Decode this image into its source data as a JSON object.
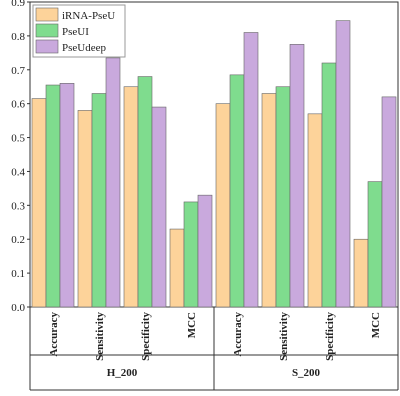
{
  "chart_data": {
    "type": "bar",
    "groups": [
      {
        "name": "H_200",
        "categories": [
          "Accuracy",
          "Sensitivity",
          "Specificity",
          "MCC"
        ]
      },
      {
        "name": "S_200",
        "categories": [
          "Accuracy",
          "Sensitivity",
          "Specificity",
          "MCC"
        ]
      }
    ],
    "series": [
      {
        "name": "iRNA-PseU",
        "color": "#fdd39a",
        "values": [
          0.615,
          0.58,
          0.65,
          0.23,
          0.6,
          0.63,
          0.57,
          0.2
        ]
      },
      {
        "name": "PseUI",
        "color": "#7fdc8e",
        "values": [
          0.655,
          0.63,
          0.68,
          0.31,
          0.685,
          0.65,
          0.72,
          0.37
        ]
      },
      {
        "name": "PseUdeep",
        "color": "#c9a9dd",
        "values": [
          0.66,
          0.735,
          0.59,
          0.33,
          0.81,
          0.775,
          0.845,
          0.62
        ]
      }
    ],
    "ylim": [
      0,
      0.9
    ],
    "yticks": [
      {
        "value": 0,
        "label": "0.0"
      },
      0.1,
      0.2,
      0.3,
      0.4,
      0.5,
      0.6,
      0.7,
      0.8,
      0.9
    ],
    "legend": "top-left"
  }
}
